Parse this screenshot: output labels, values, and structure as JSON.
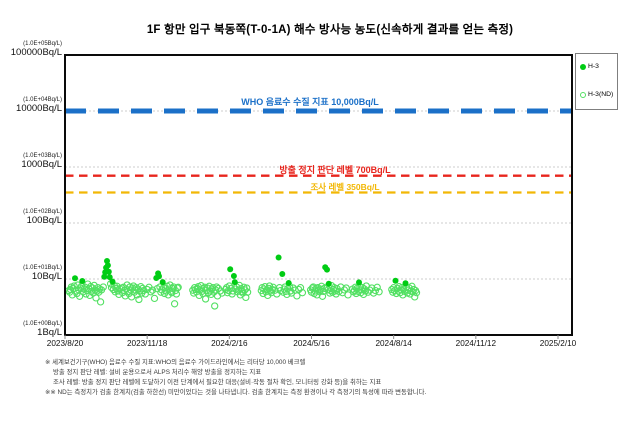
{
  "title": "1F  항만 입구 북동쪽(T-0-1A)  해수 방사능 농도(신속하게 결과를 얻는 측정)",
  "legend": {
    "items": [
      {
        "label": "H-3",
        "marker": "filled-circle",
        "color": "#00cc14"
      },
      {
        "label": "H-3(ND)",
        "marker": "open-circle",
        "color": "#52e062"
      }
    ]
  },
  "thresholds": [
    {
      "id": "who",
      "label": "WHO 음료수 수질 지표 10,000Bq/L",
      "value": 10000,
      "color": "#1b70c8",
      "line": "thick-dash"
    },
    {
      "id": "stop",
      "label": "방출 정지 판단 레벨 700Bq/L",
      "value": 700,
      "color": "#e8251d",
      "line": "dash"
    },
    {
      "id": "survey",
      "label": "조사 레벨 350Bq/L",
      "value": 350,
      "color": "#f2b705",
      "line": "dash"
    }
  ],
  "footnotes": [
    "※ 세계보건기구(WHO) 음료수 수질 지표:WHO의 음료수 가이드라인에서는 리터당 10,000 베크렐",
    "방출 정지 판단 레벨: 설비 운용으로서 ALPS 처리수 해양 방출을 정지하는 지표",
    "조사 레벨: 방출 정지 판단 레벨에 도달하기 이전 단계에서 필요한 대응(설비·작동 절차 확인, 모니터링 강화 등)을 취하는 지표",
    "※※  ND는 측정치가 검출 한계치(검출 하한선) 미만이었다는 것을 나타냅니다. 검출 한계치는 측정 환경이나 각 측정기의 특성에 따라 변동합니다."
  ],
  "chart_data": {
    "type": "scatter",
    "title": "1F 항만 입구 북동쪽(T-0-1A) 해수 방사능 농도(신속하게 결과를 얻는 측정)",
    "ylabel": "Bq/L",
    "y_scale": "log",
    "ylim": [
      1,
      100000
    ],
    "y_ticks": [
      {
        "sci": "(1.0E+05Bq/L)",
        "label": "100000Bq/L",
        "value": 100000
      },
      {
        "sci": "(1.0E+04Bq/L)",
        "label": "10000Bq/L",
        "value": 10000
      },
      {
        "sci": "(1.0E+03Bq/L)",
        "label": "1000Bq/L",
        "value": 1000
      },
      {
        "sci": "(1.0E+02Bq/L)",
        "label": "100Bq/L",
        "value": 100
      },
      {
        "sci": "(1.0E+01Bq/L)",
        "label": "10Bq/L",
        "value": 10
      },
      {
        "sci": "(1.0E+00Bq/L)",
        "label": "1Bq/L",
        "value": 1
      }
    ],
    "x_origin": "2023/8/20",
    "x_tick_interval_days": 90,
    "x_tick_labels": [
      "2023/8/20",
      "2023/11/18",
      "2024/2/16",
      "2024/5/16",
      "2024/8/14",
      "2024/11/12",
      "2025/2/10"
    ],
    "legend_position": "upper right",
    "grid": true,
    "series": [
      {
        "name": "H-3",
        "marker": "filled-circle",
        "color": "#00cc14"
      },
      {
        "name": "H-3(ND)",
        "marker": "open-circle",
        "color": "#52e062"
      }
    ],
    "points_format": "[days_since_2023/8/20, Bq_per_L, 1_if_detected_H3_else_ND]",
    "points": [
      [
        4,
        6.2,
        0
      ],
      [
        5,
        5.8,
        0
      ],
      [
        6,
        6.5,
        0
      ],
      [
        7,
        7.2,
        0
      ],
      [
        8,
        5.2,
        0
      ],
      [
        9,
        6.8,
        0
      ],
      [
        10,
        7.5,
        0
      ],
      [
        11,
        10.3,
        1
      ],
      [
        12,
        6.1,
        0
      ],
      [
        13,
        5.5,
        0
      ],
      [
        14,
        7.8,
        0
      ],
      [
        15,
        6.4,
        0
      ],
      [
        16,
        4.9,
        0
      ],
      [
        17,
        6.9,
        0
      ],
      [
        18,
        7.4,
        0
      ],
      [
        19,
        9.2,
        1
      ],
      [
        20,
        5.9,
        0
      ],
      [
        21,
        6.6,
        0
      ],
      [
        22,
        7.1,
        0
      ],
      [
        23,
        5.4,
        0
      ],
      [
        24,
        6.2,
        0
      ],
      [
        25,
        8.1,
        0
      ],
      [
        26,
        6.7,
        0
      ],
      [
        27,
        5.1,
        0
      ],
      [
        28,
        7.3,
        0
      ],
      [
        29,
        6.0,
        0
      ],
      [
        30,
        6.9,
        0
      ],
      [
        31,
        5.6,
        0
      ],
      [
        32,
        7.7,
        0
      ],
      [
        33,
        6.3,
        0
      ],
      [
        34,
        4.6,
        0
      ],
      [
        35,
        6.1,
        0
      ],
      [
        36,
        7.0,
        0
      ],
      [
        37,
        5.8,
        0
      ],
      [
        38,
        6.6,
        0
      ],
      [
        39,
        3.9,
        0
      ],
      [
        40,
        6.4,
        0
      ],
      [
        42,
        7.2,
        0
      ],
      [
        43,
        11.0,
        1
      ],
      [
        44,
        13.2,
        1
      ],
      [
        45,
        16.0,
        1
      ],
      [
        46,
        21.0,
        1
      ],
      [
        47,
        17.5,
        1
      ],
      [
        48,
        13.5,
        1
      ],
      [
        49,
        10.8,
        1
      ],
      [
        50,
        8.2,
        0
      ],
      [
        51,
        7.0,
        0
      ],
      [
        52,
        9.0,
        1
      ],
      [
        53,
        6.5,
        0
      ],
      [
        54,
        7.6,
        0
      ],
      [
        55,
        5.9,
        0
      ],
      [
        56,
        6.8,
        0
      ],
      [
        57,
        7.4,
        0
      ],
      [
        58,
        6.1,
        0
      ],
      [
        59,
        5.3,
        0
      ],
      [
        60,
        6.7,
        0
      ],
      [
        62,
        6.9,
        0
      ],
      [
        63,
        5.7,
        0
      ],
      [
        64,
        7.1,
        0
      ],
      [
        65,
        6.2,
        0
      ],
      [
        66,
        5.0,
        0
      ],
      [
        67,
        6.6,
        0
      ],
      [
        68,
        7.8,
        0
      ],
      [
        69,
        6.0,
        0
      ],
      [
        70,
        5.5,
        0
      ],
      [
        71,
        7.2,
        0
      ],
      [
        72,
        6.4,
        0
      ],
      [
        73,
        4.8,
        0
      ],
      [
        74,
        6.9,
        0
      ],
      [
        75,
        7.5,
        0
      ],
      [
        76,
        5.8,
        0
      ],
      [
        77,
        6.3,
        0
      ],
      [
        78,
        7.0,
        0
      ],
      [
        79,
        5.2,
        0
      ],
      [
        80,
        6.6,
        0
      ],
      [
        81,
        4.3,
        0
      ],
      [
        82,
        6.1,
        0
      ],
      [
        83,
        7.3,
        0
      ],
      [
        84,
        5.6,
        0
      ],
      [
        85,
        6.8,
        0
      ],
      [
        86,
        6.2,
        0
      ],
      [
        88,
        5.4,
        0
      ],
      [
        90,
        6.5,
        0
      ],
      [
        92,
        7.1,
        0
      ],
      [
        94,
        5.9,
        0
      ],
      [
        96,
        6.3,
        0
      ],
      [
        98,
        4.5,
        0
      ],
      [
        100,
        10.4,
        1
      ],
      [
        101,
        6.7,
        0
      ],
      [
        102,
        12.6,
        1
      ],
      [
        103,
        11.2,
        1
      ],
      [
        104,
        7.2,
        0
      ],
      [
        105,
        5.8,
        0
      ],
      [
        106,
        6.4,
        0
      ],
      [
        107,
        8.8,
        1
      ],
      [
        108,
        7.0,
        0
      ],
      [
        109,
        5.5,
        0
      ],
      [
        110,
        6.9,
        0
      ],
      [
        111,
        6.1,
        0
      ],
      [
        112,
        7.4,
        0
      ],
      [
        113,
        5.2,
        0
      ],
      [
        114,
        6.6,
        0
      ],
      [
        115,
        7.8,
        0
      ],
      [
        116,
        6.0,
        0
      ],
      [
        117,
        5.7,
        0
      ],
      [
        118,
        6.8,
        0
      ],
      [
        119,
        7.2,
        0
      ],
      [
        120,
        3.6,
        0
      ],
      [
        121,
        6.2,
        0
      ],
      [
        122,
        5.4,
        0
      ],
      [
        123,
        6.9,
        0
      ],
      [
        124,
        7.1,
        0
      ],
      [
        140,
        6.3,
        0
      ],
      [
        141,
        5.6,
        0
      ],
      [
        142,
        7.0,
        0
      ],
      [
        143,
        6.5,
        0
      ],
      [
        144,
        5.9,
        0
      ],
      [
        145,
        6.8,
        0
      ],
      [
        146,
        7.3,
        0
      ],
      [
        147,
        5.1,
        0
      ],
      [
        148,
        6.4,
        0
      ],
      [
        149,
        7.6,
        0
      ],
      [
        150,
        6.0,
        0
      ],
      [
        151,
        5.5,
        0
      ],
      [
        152,
        6.7,
        0
      ],
      [
        153,
        7.1,
        0
      ],
      [
        154,
        4.4,
        0
      ],
      [
        155,
        6.2,
        0
      ],
      [
        156,
        6.9,
        0
      ],
      [
        157,
        5.7,
        0
      ],
      [
        158,
        7.4,
        0
      ],
      [
        159,
        6.1,
        0
      ],
      [
        160,
        5.3,
        0
      ],
      [
        161,
        6.6,
        0
      ],
      [
        162,
        7.0,
        0
      ],
      [
        163,
        5.8,
        0
      ],
      [
        164,
        3.3,
        0
      ],
      [
        165,
        6.4,
        0
      ],
      [
        166,
        7.2,
        0
      ],
      [
        167,
        5.0,
        0
      ],
      [
        168,
        6.8,
        0
      ],
      [
        170,
        6.1,
        0
      ],
      [
        172,
        5.6,
        0
      ],
      [
        176,
        6.5,
        0
      ],
      [
        177,
        7.0,
        0
      ],
      [
        178,
        5.7,
        0
      ],
      [
        179,
        6.2,
        0
      ],
      [
        180,
        7.5,
        0
      ],
      [
        181,
        14.9,
        1
      ],
      [
        182,
        6.8,
        0
      ],
      [
        183,
        5.4,
        0
      ],
      [
        184,
        6.1,
        0
      ],
      [
        185,
        11.3,
        1
      ],
      [
        186,
        8.8,
        1
      ],
      [
        187,
        6.6,
        0
      ],
      [
        188,
        7.2,
        0
      ],
      [
        189,
        5.9,
        0
      ],
      [
        190,
        6.3,
        0
      ],
      [
        191,
        7.7,
        0
      ],
      [
        192,
        5.2,
        0
      ],
      [
        193,
        6.7,
        0
      ],
      [
        194,
        6.0,
        0
      ],
      [
        195,
        5.6,
        0
      ],
      [
        196,
        7.1,
        0
      ],
      [
        197,
        6.4,
        0
      ],
      [
        198,
        4.7,
        0
      ],
      [
        199,
        6.9,
        0
      ],
      [
        200,
        5.8,
        0
      ],
      [
        215,
        6.2,
        0
      ],
      [
        216,
        7.0,
        0
      ],
      [
        217,
        5.5,
        0
      ],
      [
        218,
        6.6,
        0
      ],
      [
        219,
        7.3,
        0
      ],
      [
        220,
        5.9,
        0
      ],
      [
        221,
        6.4,
        0
      ],
      [
        222,
        5.1,
        0
      ],
      [
        223,
        6.8,
        0
      ],
      [
        224,
        7.5,
        0
      ],
      [
        225,
        6.1,
        0
      ],
      [
        226,
        5.7,
        0
      ],
      [
        227,
        6.5,
        0
      ],
      [
        228,
        7.1,
        0
      ],
      [
        230,
        6.3,
        0
      ],
      [
        232,
        5.4,
        0
      ],
      [
        234,
        24.2,
        1
      ],
      [
        235,
        7.0,
        0
      ],
      [
        236,
        6.2,
        0
      ],
      [
        238,
        12.3,
        1
      ],
      [
        239,
        5.8,
        0
      ],
      [
        240,
        6.6,
        0
      ],
      [
        241,
        7.2,
        0
      ],
      [
        242,
        6.0,
        0
      ],
      [
        243,
        5.3,
        0
      ],
      [
        244,
        6.7,
        0
      ],
      [
        245,
        8.5,
        1
      ],
      [
        246,
        7.4,
        0
      ],
      [
        247,
        6.1,
        0
      ],
      [
        248,
        5.6,
        0
      ],
      [
        250,
        6.9,
        0
      ],
      [
        252,
        6.3,
        0
      ],
      [
        254,
        5.0,
        0
      ],
      [
        256,
        6.5,
        0
      ],
      [
        258,
        7.0,
        0
      ],
      [
        260,
        5.7,
        0
      ],
      [
        269,
        6.4,
        0
      ],
      [
        270,
        5.8,
        0
      ],
      [
        271,
        6.9,
        0
      ],
      [
        272,
        7.2,
        0
      ],
      [
        273,
        5.5,
        0
      ],
      [
        274,
        6.1,
        0
      ],
      [
        275,
        6.7,
        0
      ],
      [
        276,
        5.2,
        0
      ],
      [
        277,
        7.0,
        0
      ],
      [
        278,
        6.3,
        0
      ],
      [
        279,
        5.9,
        0
      ],
      [
        280,
        6.6,
        0
      ],
      [
        281,
        7.4,
        0
      ],
      [
        282,
        4.9,
        0
      ],
      [
        283,
        6.0,
        0
      ],
      [
        284,
        6.8,
        0
      ],
      [
        285,
        16.2,
        1
      ],
      [
        286,
        7.1,
        0
      ],
      [
        287,
        14.7,
        1
      ],
      [
        288,
        6.4,
        0
      ],
      [
        289,
        8.2,
        1
      ],
      [
        290,
        5.6,
        0
      ],
      [
        291,
        6.2,
        0
      ],
      [
        292,
        7.6,
        0
      ],
      [
        293,
        5.8,
        0
      ],
      [
        294,
        6.5,
        0
      ],
      [
        295,
        7.0,
        0
      ],
      [
        296,
        6.1,
        0
      ],
      [
        297,
        5.4,
        0
      ],
      [
        298,
        6.7,
        0
      ],
      [
        300,
        6.0,
        0
      ],
      [
        302,
        7.2,
        0
      ],
      [
        304,
        5.7,
        0
      ],
      [
        306,
        6.4,
        0
      ],
      [
        308,
        6.9,
        0
      ],
      [
        310,
        5.2,
        0
      ],
      [
        315,
        6.6,
        0
      ],
      [
        316,
        5.9,
        0
      ],
      [
        317,
        6.2,
        0
      ],
      [
        318,
        7.1,
        0
      ],
      [
        319,
        5.5,
        0
      ],
      [
        320,
        6.8,
        0
      ],
      [
        321,
        6.0,
        0
      ],
      [
        322,
        8.7,
        1
      ],
      [
        323,
        7.3,
        0
      ],
      [
        324,
        5.7,
        0
      ],
      [
        325,
        6.4,
        0
      ],
      [
        326,
        7.0,
        0
      ],
      [
        327,
        5.3,
        0
      ],
      [
        328,
        6.6,
        0
      ],
      [
        329,
        6.1,
        0
      ],
      [
        330,
        7.5,
        0
      ],
      [
        332,
        5.8,
        0
      ],
      [
        334,
        6.3,
        0
      ],
      [
        336,
        6.9,
        0
      ],
      [
        338,
        5.6,
        0
      ],
      [
        340,
        6.2,
        0
      ],
      [
        342,
        7.1,
        0
      ],
      [
        344,
        5.9,
        0
      ],
      [
        358,
        6.5,
        0
      ],
      [
        359,
        5.8,
        0
      ],
      [
        360,
        7.0,
        0
      ],
      [
        361,
        6.2,
        0
      ],
      [
        362,
        9.3,
        1
      ],
      [
        363,
        5.5,
        0
      ],
      [
        364,
        6.8,
        0
      ],
      [
        365,
        6.1,
        0
      ],
      [
        366,
        7.3,
        0
      ],
      [
        367,
        5.7,
        0
      ],
      [
        368,
        6.4,
        0
      ],
      [
        369,
        7.0,
        0
      ],
      [
        370,
        5.2,
        0
      ],
      [
        371,
        6.6,
        0
      ],
      [
        372,
        6.0,
        0
      ],
      [
        373,
        8.4,
        1
      ],
      [
        374,
        7.2,
        0
      ],
      [
        375,
        5.6,
        0
      ],
      [
        376,
        6.3,
        0
      ],
      [
        377,
        6.9,
        0
      ],
      [
        378,
        5.4,
        0
      ],
      [
        379,
        6.1,
        0
      ],
      [
        380,
        7.4,
        0
      ],
      [
        381,
        5.9,
        0
      ],
      [
        382,
        6.5,
        0
      ],
      [
        383,
        4.8,
        0
      ],
      [
        384,
        6.2,
        0
      ],
      [
        385,
        5.7,
        0
      ]
    ]
  }
}
